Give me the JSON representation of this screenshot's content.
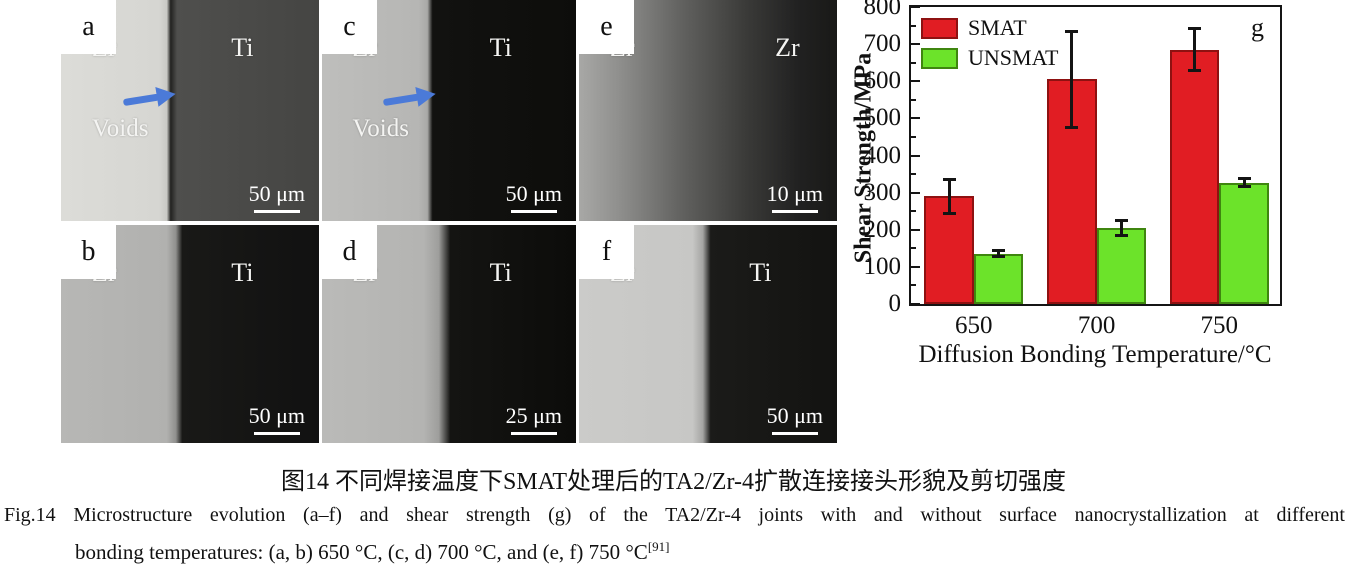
{
  "panels": [
    {
      "letter": "a",
      "left_label": "Zr",
      "right_label": "Ti",
      "voids_label": "Voids",
      "scale_label": "50 μm",
      "has_arrow": true,
      "bg": "linear-gradient(90deg,#dcdcd8 0%,#d6d6d2 38%,#c9c9c5 41%,#222220 42.5%,#4f4f4d 45%,#454543 100%)"
    },
    {
      "letter": "c",
      "left_label": "Zr",
      "right_label": "Ti",
      "voids_label": "Voids",
      "scale_label": "50 μm",
      "has_arrow": true,
      "bg": "linear-gradient(90deg,#bebebc 0%,#b6b6b4 38%,#a9a9a7 41.5%,#121210 43.5%,#0d0d0b 100%)"
    },
    {
      "letter": "e",
      "left_label": "Zr",
      "right_label": "Zr",
      "scale_label": "10 μm",
      "has_arrow": false,
      "bg": "linear-gradient(90deg,#a8a8a6 0%,#90908e 15%,#61615f 40%,#3a3a38 65%,#212121 85%,#191917 100%)"
    },
    {
      "letter": "b",
      "left_label": "Zr",
      "right_label": "Ti",
      "scale_label": "50 μm",
      "has_arrow": false,
      "bg": "linear-gradient(90deg,#b7b7b5 0%,#b1b1af 41%,#90908e 44.5%,#191917 47%,#111111 100%)"
    },
    {
      "letter": "d",
      "left_label": "Zr",
      "right_label": "Ti",
      "scale_label": "25 μm",
      "has_arrow": false,
      "bg": "linear-gradient(90deg,#babab8 0%,#b4b4b2 40%,#9e9e9c 46%,#141412 50.5%,#0c0c0a 100%)"
    },
    {
      "letter": "f",
      "left_label": "Zr",
      "right_label": "Ti",
      "scale_label": "50 μm",
      "has_arrow": false,
      "bg": "linear-gradient(90deg,#cbcbc9 0%,#c7c7c5 44%,#a5a5a3 48%,#1b1b19 51%,#131311 100%)"
    }
  ],
  "chart_data": {
    "type": "bar",
    "panel_label": "g",
    "categories": [
      "650",
      "700",
      "750"
    ],
    "series": [
      {
        "name": "SMAT",
        "color": "#e11d23",
        "border_color": "#8e1111",
        "values": [
          290,
          605,
          685
        ],
        "errors": [
          45,
          130,
          56
        ]
      },
      {
        "name": "UNSMAT",
        "color": "#6ce32a",
        "border_color": "#3f860f",
        "values": [
          135,
          205,
          327
        ],
        "errors": [
          8,
          20,
          10
        ]
      }
    ],
    "xlabel": "Diffusion Bonding Temperature/°C",
    "ylabel": "Shear Strength/MPa",
    "ylim": [
      0,
      800
    ],
    "ytick_major": 100,
    "ytick_minor": 50,
    "legend_position": "top-left",
    "grid": false
  },
  "captions": {
    "chinese": "图14  不同焊接温度下SMAT处理后的TA2/Zr-4扩散连接接头形貌及剪切强度",
    "english_line1": "Fig.14  Microstructure evolution (a–f) and shear strength (g) of the TA2/Zr-4 joints with and without surface nanocrystallization at different",
    "english_line2": "bonding temperatures: (a, b) 650 °C, (c, d) 700 °C, and (e, f) 750 °C",
    "reference": "[91]"
  },
  "accent_colors": {
    "arrow_blue": "#4b7ad8"
  }
}
